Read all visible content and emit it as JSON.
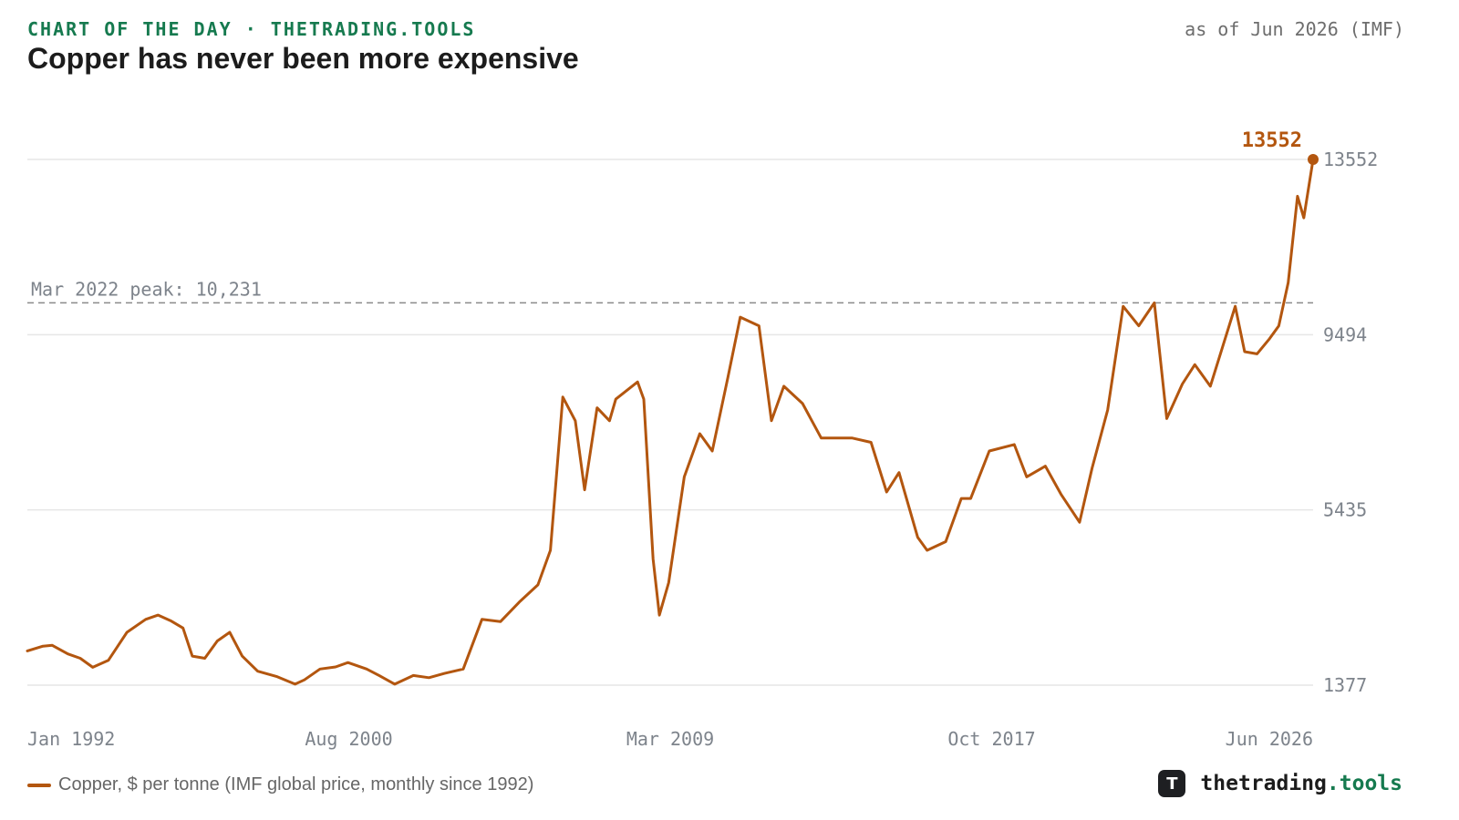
{
  "header": {
    "kicker": "CHART OF THE DAY · THETRADING.TOOLS",
    "as_of": "as of Jun 2026 (IMF)",
    "title": "Copper has never been more expensive"
  },
  "legend": {
    "label": "Copper, $ per tonne (IMF global price, monthly since 1992)"
  },
  "brand": {
    "logo_letter": "T",
    "name": "thetrading",
    "tld": ".tools",
    "logo_icon": "brand-logo-icon"
  },
  "colors": {
    "series": "#b3560f",
    "kicker": "#167a4f",
    "grid": "#e6e6e6",
    "axis_text": "#7d838b",
    "reference_line": "#8a8a8a"
  },
  "chart_data": {
    "type": "line",
    "xlabel": "",
    "ylabel": "",
    "x_ticks": [
      "Jan 1992",
      "Aug 2000",
      "Mar 2009",
      "Oct 2017",
      "Jun 2026"
    ],
    "y_ticks": [
      1377,
      5435,
      9494,
      13552
    ],
    "y_tick_labels": [
      "1377",
      "5435",
      "9494",
      "13552"
    ],
    "ylim": [
      1377,
      13552
    ],
    "xlim": [
      "1992-01",
      "2026-06"
    ],
    "grid": "horizontal",
    "legend_position": "bottom-left",
    "reference_line": {
      "value": 10231,
      "label": "Mar 2022 peak: 10,231",
      "style": "dashed"
    },
    "last_value_label": "13552",
    "series": [
      {
        "points": [
          [
            "1992-01",
            2170
          ],
          [
            "1992-06",
            2280
          ],
          [
            "1992-09",
            2300
          ],
          [
            "1993-02",
            2100
          ],
          [
            "1993-06",
            2000
          ],
          [
            "1993-10",
            1790
          ],
          [
            "1994-03",
            1950
          ],
          [
            "1994-09",
            2600
          ],
          [
            "1995-03",
            2900
          ],
          [
            "1995-07",
            3000
          ],
          [
            "1995-11",
            2870
          ],
          [
            "1996-03",
            2700
          ],
          [
            "1996-06",
            2050
          ],
          [
            "1996-10",
            2000
          ],
          [
            "1997-02",
            2400
          ],
          [
            "1997-06",
            2600
          ],
          [
            "1997-10",
            2050
          ],
          [
            "1998-03",
            1700
          ],
          [
            "1998-09",
            1580
          ],
          [
            "1999-03",
            1400
          ],
          [
            "1999-06",
            1500
          ],
          [
            "1999-11",
            1750
          ],
          [
            "2000-04",
            1800
          ],
          [
            "2000-08",
            1900
          ],
          [
            "2001-02",
            1750
          ],
          [
            "2001-06",
            1600
          ],
          [
            "2001-11",
            1400
          ],
          [
            "2002-05",
            1600
          ],
          [
            "2002-10",
            1550
          ],
          [
            "2003-03",
            1650
          ],
          [
            "2003-09",
            1750
          ],
          [
            "2004-03",
            2900
          ],
          [
            "2004-09",
            2850
          ],
          [
            "2005-03",
            3300
          ],
          [
            "2005-09",
            3700
          ],
          [
            "2006-01",
            4500
          ],
          [
            "2006-05",
            8050
          ],
          [
            "2006-09",
            7500
          ],
          [
            "2006-12",
            5900
          ],
          [
            "2007-04",
            7800
          ],
          [
            "2007-08",
            7500
          ],
          [
            "2007-10",
            8000
          ],
          [
            "2008-05",
            8400
          ],
          [
            "2008-07",
            8000
          ],
          [
            "2008-10",
            4300
          ],
          [
            "2008-12",
            3000
          ],
          [
            "2009-03",
            3750
          ],
          [
            "2009-08",
            6200
          ],
          [
            "2010-01",
            7200
          ],
          [
            "2010-05",
            6800
          ],
          [
            "2010-10",
            8500
          ],
          [
            "2011-02",
            9900
          ],
          [
            "2011-08",
            9700
          ],
          [
            "2011-12",
            7500
          ],
          [
            "2012-04",
            8300
          ],
          [
            "2012-10",
            7900
          ],
          [
            "2013-04",
            7100
          ],
          [
            "2013-09",
            7100
          ],
          [
            "2014-02",
            7100
          ],
          [
            "2014-08",
            7000
          ],
          [
            "2015-01",
            5850
          ],
          [
            "2015-05",
            6300
          ],
          [
            "2015-11",
            4800
          ],
          [
            "2016-02",
            4500
          ],
          [
            "2016-08",
            4700
          ],
          [
            "2017-01",
            5700
          ],
          [
            "2017-04",
            5700
          ],
          [
            "2017-10",
            6800
          ],
          [
            "2018-06",
            6950
          ],
          [
            "2018-10",
            6200
          ],
          [
            "2019-04",
            6450
          ],
          [
            "2019-09",
            5800
          ],
          [
            "2020-03",
            5150
          ],
          [
            "2020-07",
            6400
          ],
          [
            "2020-12",
            7750
          ],
          [
            "2021-05",
            10150
          ],
          [
            "2021-10",
            9700
          ],
          [
            "2022-03",
            10231
          ],
          [
            "2022-07",
            7550
          ],
          [
            "2022-12",
            8350
          ],
          [
            "2023-04",
            8800
          ],
          [
            "2023-09",
            8300
          ],
          [
            "2024-05",
            10150
          ],
          [
            "2024-08",
            9100
          ],
          [
            "2024-12",
            9050
          ],
          [
            "2025-04",
            9400
          ],
          [
            "2025-07",
            9700
          ],
          [
            "2025-10",
            10700
          ],
          [
            "2026-01",
            12700
          ],
          [
            "2026-03",
            12200
          ],
          [
            "2026-06",
            13552
          ]
        ]
      }
    ]
  }
}
